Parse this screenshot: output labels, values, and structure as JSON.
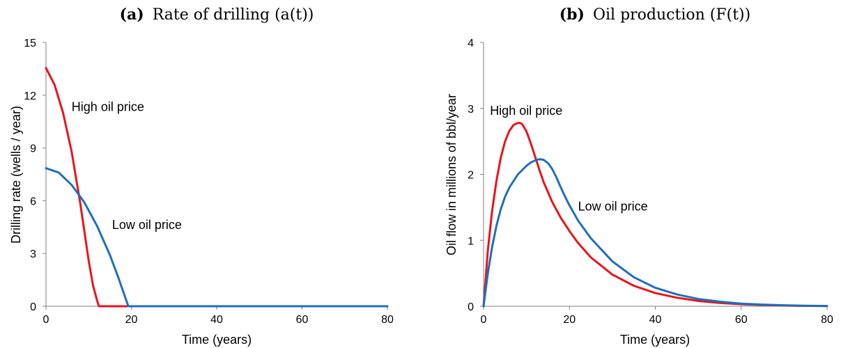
{
  "chart_data": [
    {
      "type": "line",
      "panel_letter": "(a)",
      "title": "Rate of drilling (a(t))",
      "xlabel": "Time (years)",
      "ylabel": "Drilling rate (wells / year)",
      "xlim": [
        0,
        80
      ],
      "ylim": [
        0,
        15
      ],
      "xticks": [
        0,
        20,
        40,
        60,
        80
      ],
      "yticks": [
        0,
        3,
        6,
        9,
        12,
        15
      ],
      "grid": false,
      "series": [
        {
          "name": "High oil price",
          "color": "#e8141b",
          "x": [
            0,
            2,
            4,
            6,
            8,
            10,
            11,
            12,
            12.4,
            20,
            40,
            60,
            80
          ],
          "y": [
            13.55,
            12.6,
            11.0,
            8.8,
            5.9,
            2.6,
            1.2,
            0.3,
            0,
            0,
            0,
            0,
            0
          ]
        },
        {
          "name": "Low oil price",
          "color": "#1f6fba",
          "x": [
            0,
            3,
            6,
            9,
            12,
            15,
            17,
            18.5,
            19.3,
            20,
            40,
            60,
            80
          ],
          "y": [
            7.85,
            7.6,
            6.9,
            5.9,
            4.55,
            2.9,
            1.6,
            0.55,
            0,
            0,
            0,
            0,
            0
          ]
        }
      ],
      "annotations": [
        {
          "text": "High oil price",
          "x": 6,
          "y": 11.1
        },
        {
          "text": "Low oil price",
          "x": 15.5,
          "y": 4.4
        }
      ]
    },
    {
      "type": "line",
      "panel_letter": "(b)",
      "title": "Oil production (F(t))",
      "xlabel": "Time (years)",
      "ylabel": "Oil flow in millions of bbl/year",
      "xlim": [
        0,
        80
      ],
      "ylim": [
        0,
        4
      ],
      "xticks": [
        0,
        20,
        40,
        60,
        80
      ],
      "yticks": [
        0,
        1,
        2,
        3,
        4
      ],
      "grid": false,
      "series": [
        {
          "name": "High oil price",
          "color": "#e8141b",
          "x": [
            0,
            1,
            2,
            3,
            4,
            5,
            6,
            7,
            8,
            8.5,
            9,
            10,
            11,
            12,
            13,
            14,
            16,
            18,
            20,
            22,
            25,
            30,
            35,
            40,
            45,
            50,
            55,
            60,
            65,
            70,
            75,
            80
          ],
          "y": [
            0,
            0.85,
            1.45,
            1.9,
            2.25,
            2.5,
            2.66,
            2.75,
            2.78,
            2.78,
            2.76,
            2.65,
            2.47,
            2.27,
            2.07,
            1.88,
            1.58,
            1.34,
            1.14,
            0.96,
            0.74,
            0.48,
            0.31,
            0.2,
            0.13,
            0.08,
            0.05,
            0.03,
            0.02,
            0.01,
            0.005,
            0.003
          ]
        },
        {
          "name": "Low oil price",
          "color": "#1f6fba",
          "x": [
            0,
            1,
            2,
            3,
            4,
            5,
            6,
            8,
            10,
            11,
            12,
            13,
            14,
            15,
            16,
            17,
            18,
            19,
            20,
            22,
            25,
            30,
            35,
            40,
            45,
            50,
            55,
            60,
            65,
            70,
            75,
            80
          ],
          "y": [
            0,
            0.5,
            0.9,
            1.22,
            1.47,
            1.66,
            1.8,
            2.0,
            2.13,
            2.18,
            2.21,
            2.23,
            2.22,
            2.17,
            2.08,
            1.95,
            1.8,
            1.66,
            1.53,
            1.3,
            1.03,
            0.68,
            0.44,
            0.28,
            0.18,
            0.11,
            0.07,
            0.04,
            0.025,
            0.015,
            0.008,
            0.004
          ]
        }
      ],
      "annotations": [
        {
          "text": "High oil price",
          "x": 1.5,
          "y": 2.9
        },
        {
          "text": "Low oil price",
          "x": 22,
          "y": 1.45
        }
      ]
    }
  ]
}
